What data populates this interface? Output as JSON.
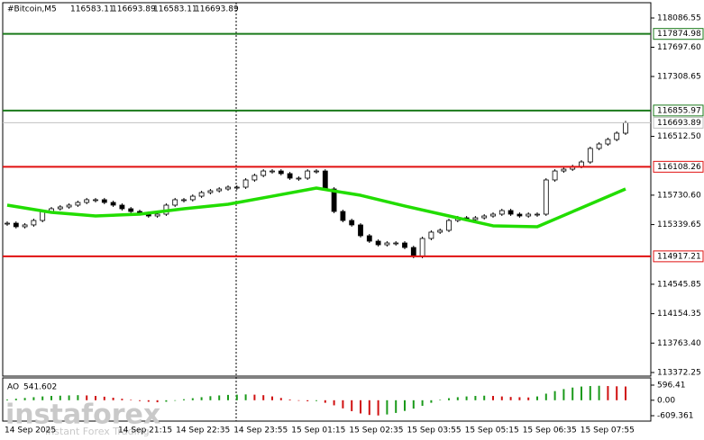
{
  "chart_data": {
    "type": "candlestick",
    "title": "#Bitcoin,M5",
    "ohlc": [
      116583.11,
      116693.89,
      116583.11,
      116693.89
    ],
    "up_color": "#ffffff",
    "down_color": "#000000",
    "close": [
      115358,
      115311,
      115335,
      115394,
      115514,
      115550,
      115574,
      115598,
      115634,
      115670,
      115670,
      115634,
      115598,
      115550,
      115514,
      115490,
      115454,
      115478,
      115598,
      115670,
      115670,
      115717,
      115765,
      115789,
      115813,
      115837,
      115837,
      115933,
      115993,
      116052,
      116052,
      116017,
      115957,
      115957,
      116052,
      116052,
      115813,
      115514,
      115394,
      115335,
      115191,
      115119,
      115071,
      115095,
      115095,
      115035,
      114916,
      115155,
      115239,
      115263,
      115394,
      115430,
      115406,
      115430,
      115454,
      115478,
      115526,
      115478,
      115454,
      115478,
      115478,
      115933,
      116052,
      116076,
      116112,
      116172,
      116352,
      116411,
      116471,
      116555,
      116693.89
    ],
    "ylim": [
      113372.25,
      118086.55
    ],
    "yticks": [
      118086.55,
      {
        "value": 117697.6,
        "label": "117697.60"
      },
      117308.65,
      {
        "value": 116512.5,
        "label": "116512.50"
      },
      {
        "value": 115730.6,
        "label": "115730.60"
      },
      115339.65,
      114545.85,
      114154.35,
      {
        "value": 113763.4,
        "label": "113763.40"
      },
      113372.25
    ],
    "levels": [
      {
        "value": 117874.98,
        "color": "#1a7a1a"
      },
      {
        "value": 116855.97,
        "color": "#1a7a1a"
      },
      {
        "value": 116108.26,
        "color": "#e01010"
      },
      {
        "value": 114917.21,
        "color": "#e01010"
      }
    ],
    "ma": {
      "color": "#22dd00",
      "x": [
        0,
        5,
        10,
        15,
        20,
        25,
        30,
        35,
        40,
        45,
        50,
        55,
        60,
        65,
        70
      ],
      "values": [
        115598,
        115502,
        115454,
        115478,
        115550,
        115610,
        115717,
        115825,
        115729,
        115586,
        115454,
        115323,
        115311,
        115562,
        115813
      ]
    },
    "ao": {
      "name": "AO",
      "ylim": [
        -609.361,
        596.41
      ],
      "yticks": [
        596.41,
        {
          "value": 0,
          "label": "0.00"
        },
        -609.361
      ],
      "up_color": "#1a9a1a",
      "down_color": "#d01010",
      "values": [
        30,
        60,
        90,
        120,
        150,
        170,
        180,
        190,
        200,
        190,
        170,
        140,
        100,
        60,
        20,
        -30,
        -60,
        -80,
        -60,
        -20,
        40,
        80,
        120,
        160,
        190,
        210,
        220,
        230,
        220,
        200,
        150,
        90,
        30,
        -20,
        -40,
        -30,
        -100,
        -200,
        -320,
        -430,
        -520,
        -580,
        -600,
        -560,
        -500,
        -420,
        -330,
        -220,
        -100,
        20,
        80,
        120,
        150,
        170,
        180,
        170,
        150,
        130,
        120,
        110,
        150,
        260,
        360,
        440,
        500,
        540,
        560,
        570,
        560,
        550,
        541.602
      ]
    },
    "xlabels": [
      "14 Sep 2025",
      "14 Sep 21:15",
      "14 Sep 22:35",
      "14 Sep 23:55",
      "15 Sep 01:15",
      "15 Sep 02:35",
      "15 Sep 03:55",
      "15 Sep 05:15",
      "15 Sep 06:35",
      "15 Sep 07:55"
    ],
    "watermark": {
      "brand": "instaforex",
      "slogan": "Instant Forex Trading"
    }
  }
}
